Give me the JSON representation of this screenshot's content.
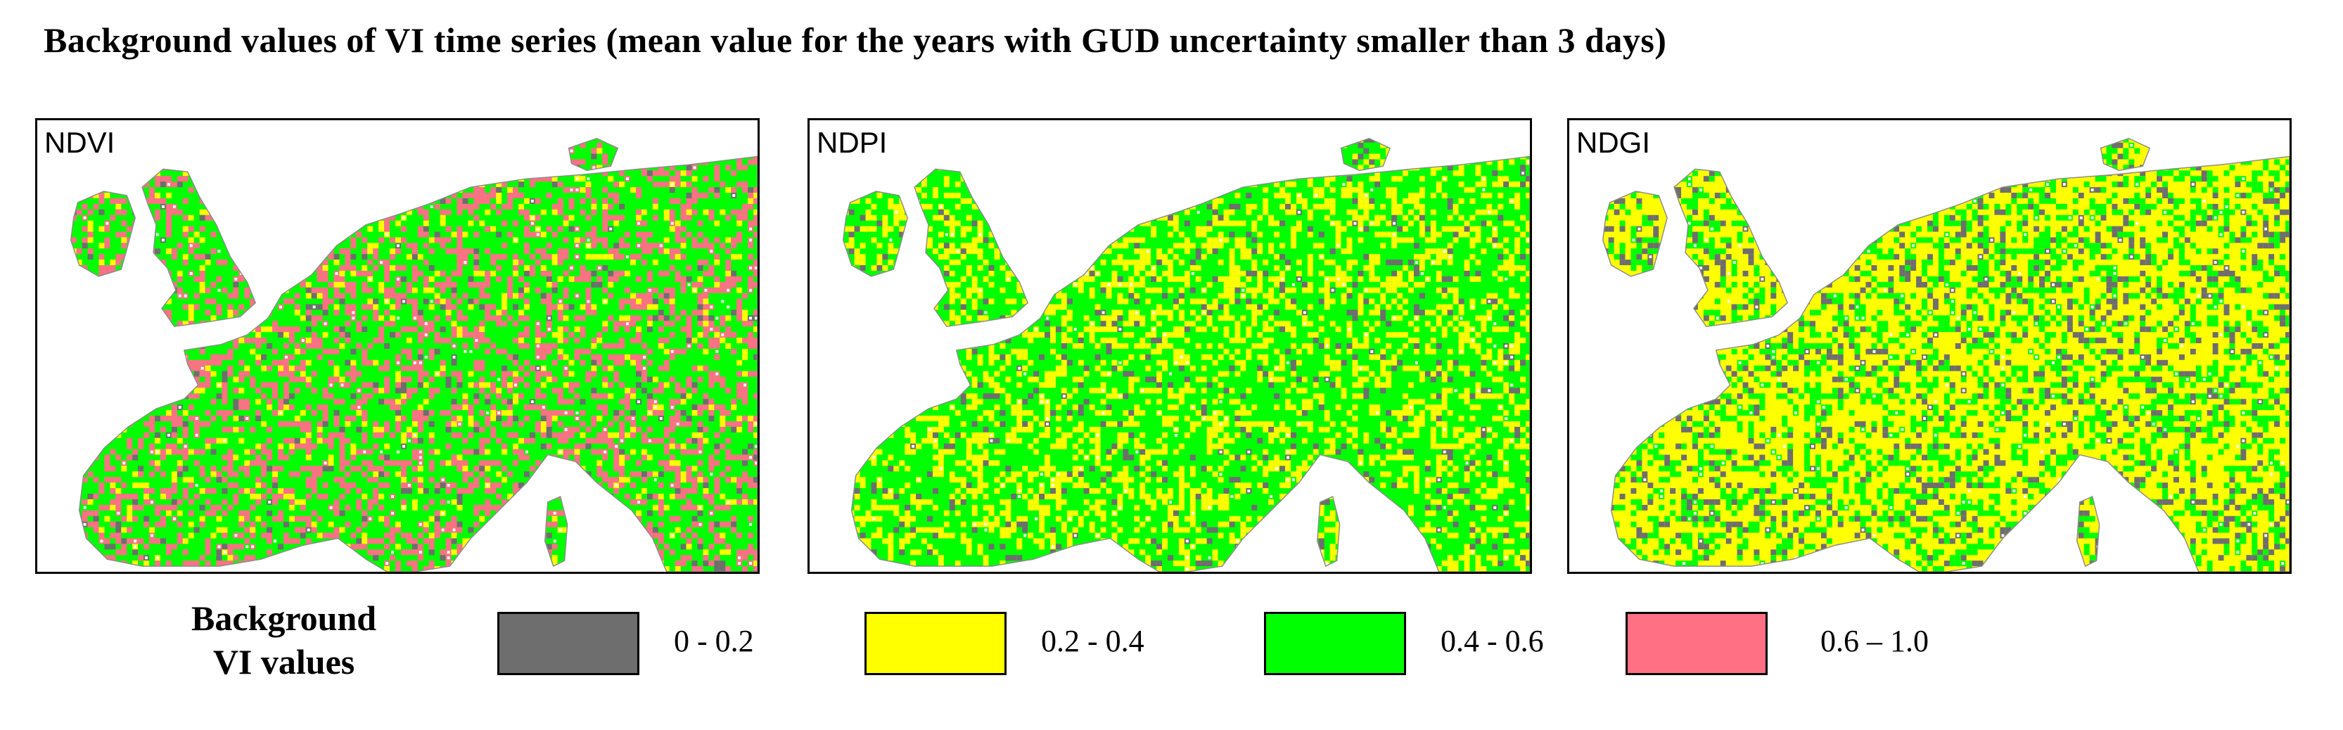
{
  "title": "Background values of VI time series  (mean value for the years with GUD uncertainty smaller than 3 days)",
  "panels": [
    {
      "label": "NDVI",
      "mix": {
        "pink": 0.3,
        "green": 0.58,
        "yellow": 0.08,
        "grey": 0.04
      }
    },
    {
      "label": "NDPI",
      "mix": {
        "pink": 0.0,
        "green": 0.62,
        "yellow": 0.32,
        "grey": 0.06
      }
    },
    {
      "label": "NDGI",
      "mix": {
        "pink": 0.0,
        "green": 0.3,
        "yellow": 0.58,
        "grey": 0.12
      }
    }
  ],
  "legend": {
    "title_line1": "Background",
    "title_line2": "VI values",
    "items": [
      {
        "label": "0 - 0.2",
        "color": "#6e6e6e"
      },
      {
        "label": "0.2 - 0.4",
        "color": "#ffff00"
      },
      {
        "label": "0.4 - 0.6",
        "color": "#00ff00"
      },
      {
        "label": "0.6 – 1.0",
        "color": "#ff7085"
      }
    ]
  },
  "colors": {
    "land_outline": "#8c8c8c",
    "background": "#ffffff"
  }
}
